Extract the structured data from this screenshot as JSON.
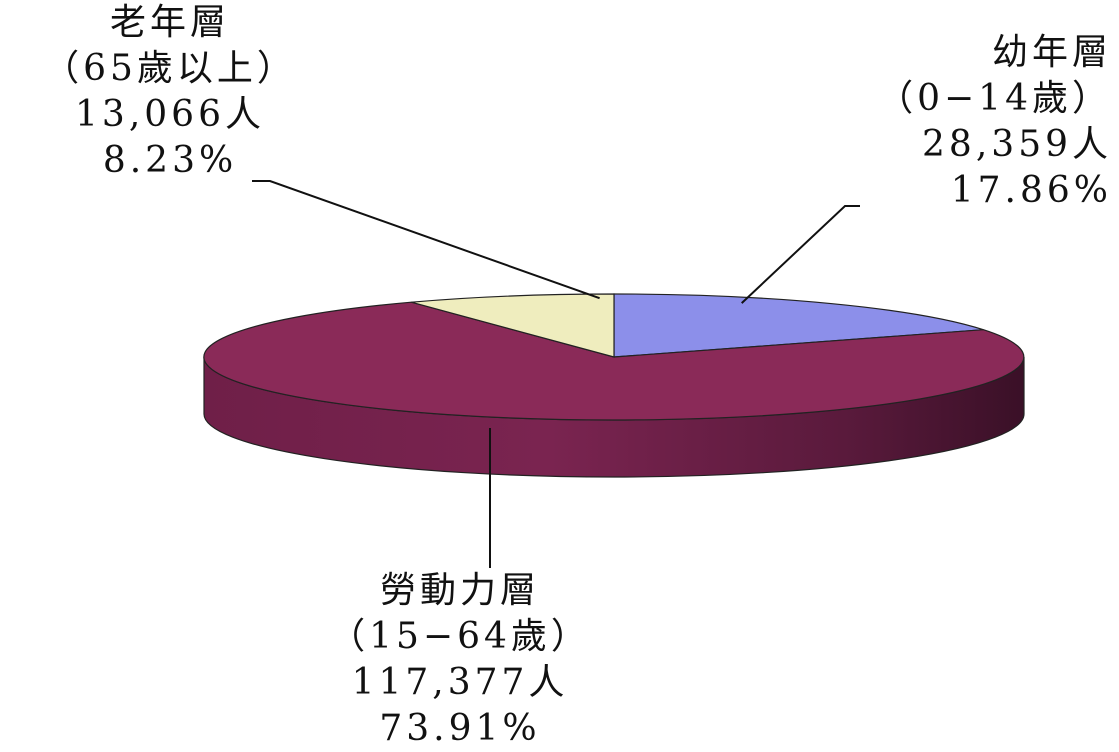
{
  "chart_data": {
    "type": "pie",
    "title": "",
    "slices": [
      {
        "key": "youth",
        "name": "幼年層",
        "range": "（0−14歲）",
        "count": "28,359人",
        "percent": "17.86%",
        "value": 28359,
        "share": 17.86,
        "color": "#8C8FEA"
      },
      {
        "key": "labor",
        "name": "勞動力層",
        "range": "（15−64歲）",
        "count": "117,377人",
        "percent": "73.91%",
        "value": 117377,
        "share": 73.91,
        "color": "#8A2A58"
      },
      {
        "key": "elderly",
        "name": "老年層",
        "range": "（65歲以上）",
        "count": "13,066人",
        "percent": "8.23%",
        "value": 13066,
        "share": 8.23,
        "color": "#EFEDBE"
      }
    ]
  }
}
